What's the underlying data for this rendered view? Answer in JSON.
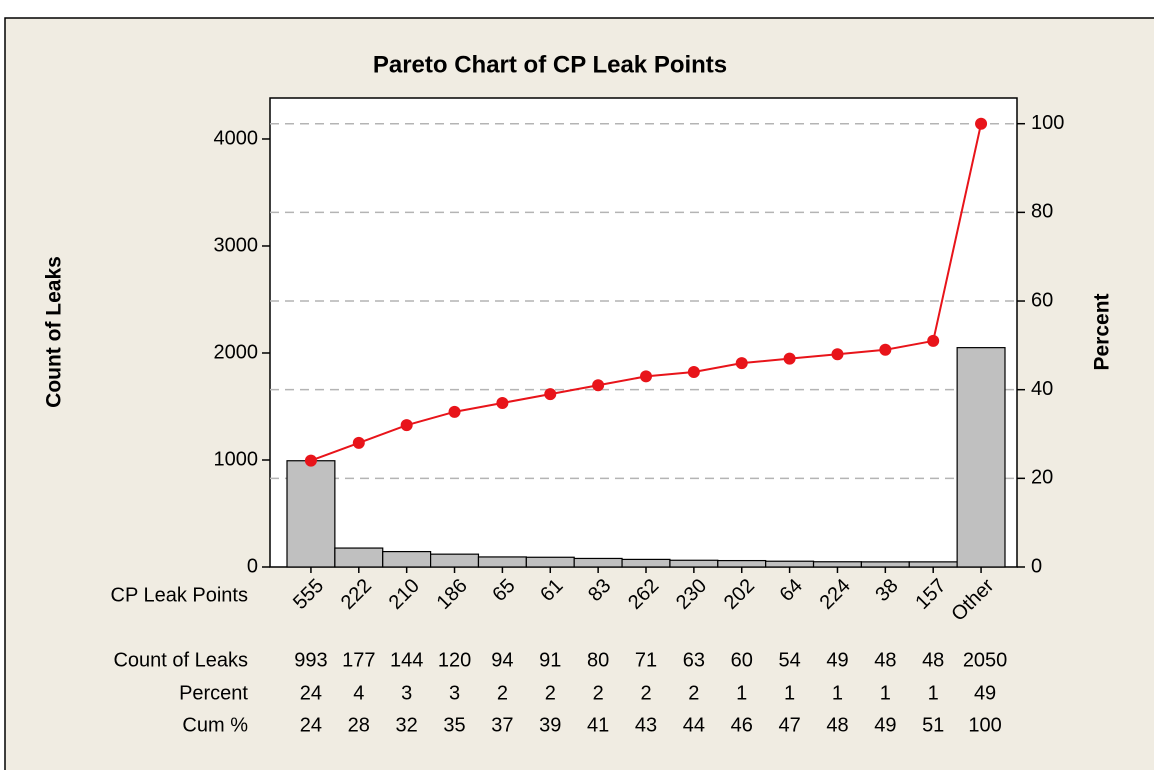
{
  "chart_data": {
    "type": "pareto",
    "title": "Pareto Chart of CP Leak Points",
    "y_label": "Count of Leaks",
    "y2_label": "Percent",
    "x_label": "CP Leak Points",
    "categories": [
      "555",
      "222",
      "210",
      "186",
      "65",
      "61",
      "83",
      "262",
      "230",
      "202",
      "64",
      "224",
      "38",
      "157",
      "Other"
    ],
    "series": [
      {
        "name": "Count of Leaks",
        "color": "#c0c0c0",
        "values": [
          993,
          177,
          144,
          120,
          94,
          91,
          80,
          71,
          63,
          60,
          54,
          49,
          48,
          48,
          2050
        ]
      },
      {
        "name": "Percent",
        "values": [
          24,
          4,
          3,
          3,
          2,
          2,
          2,
          2,
          2,
          1,
          1,
          1,
          1,
          1,
          49
        ]
      },
      {
        "name": "Cum %",
        "color": "#e8141a",
        "axis": "y2",
        "values": [
          24,
          28,
          32,
          35,
          37,
          39,
          41,
          43,
          44,
          46,
          47,
          48,
          49,
          51,
          100
        ]
      }
    ],
    "ylim": [
      0,
      4383
    ],
    "yticks": [
      0,
      1000,
      2000,
      3000,
      4000
    ],
    "y2lim": [
      0,
      105.8
    ],
    "y2ticks": [
      0,
      20,
      40,
      60,
      80,
      100
    ],
    "grid": true
  }
}
